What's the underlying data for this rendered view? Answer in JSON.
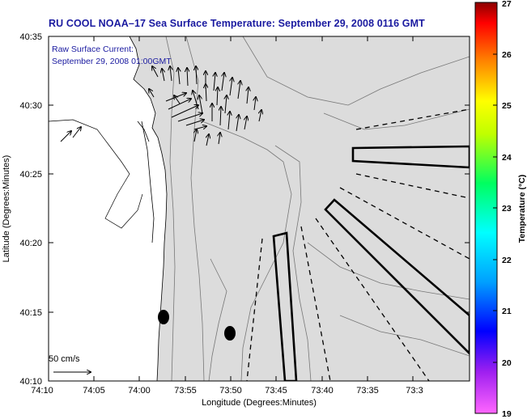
{
  "title": "RU COOL  NOAA–17  Sea Surface Temperature:  September 29, 2008 0116 GMT",
  "axes": {
    "xlabel": "Longitude (Degrees:Minutes)",
    "ylabel": "Latitude (Degrees:Minutes)",
    "xticks": [
      "74:10",
      "74:05",
      "74:00",
      "73:55",
      "73:50",
      "73:45",
      "73:40",
      "73:35",
      "73:3"
    ],
    "yticks": [
      "40:35",
      "40:30",
      "40:25",
      "40:20",
      "40:15",
      "40:10"
    ]
  },
  "annotation": {
    "line1": "Raw Surface Current:",
    "line2": "September 29, 2008 01:00GMT"
  },
  "scale": {
    "label": "50 cm/s"
  },
  "colorbar": {
    "label": "Temperature (°C)",
    "ticks": [
      "27",
      "26",
      "25",
      "24",
      "23",
      "22",
      "21",
      "20",
      "19"
    ],
    "min": 19,
    "max": 27
  },
  "colors": {
    "title": "#1a1aa0",
    "land": "#ffffff",
    "water": "#dcdcdc"
  }
}
